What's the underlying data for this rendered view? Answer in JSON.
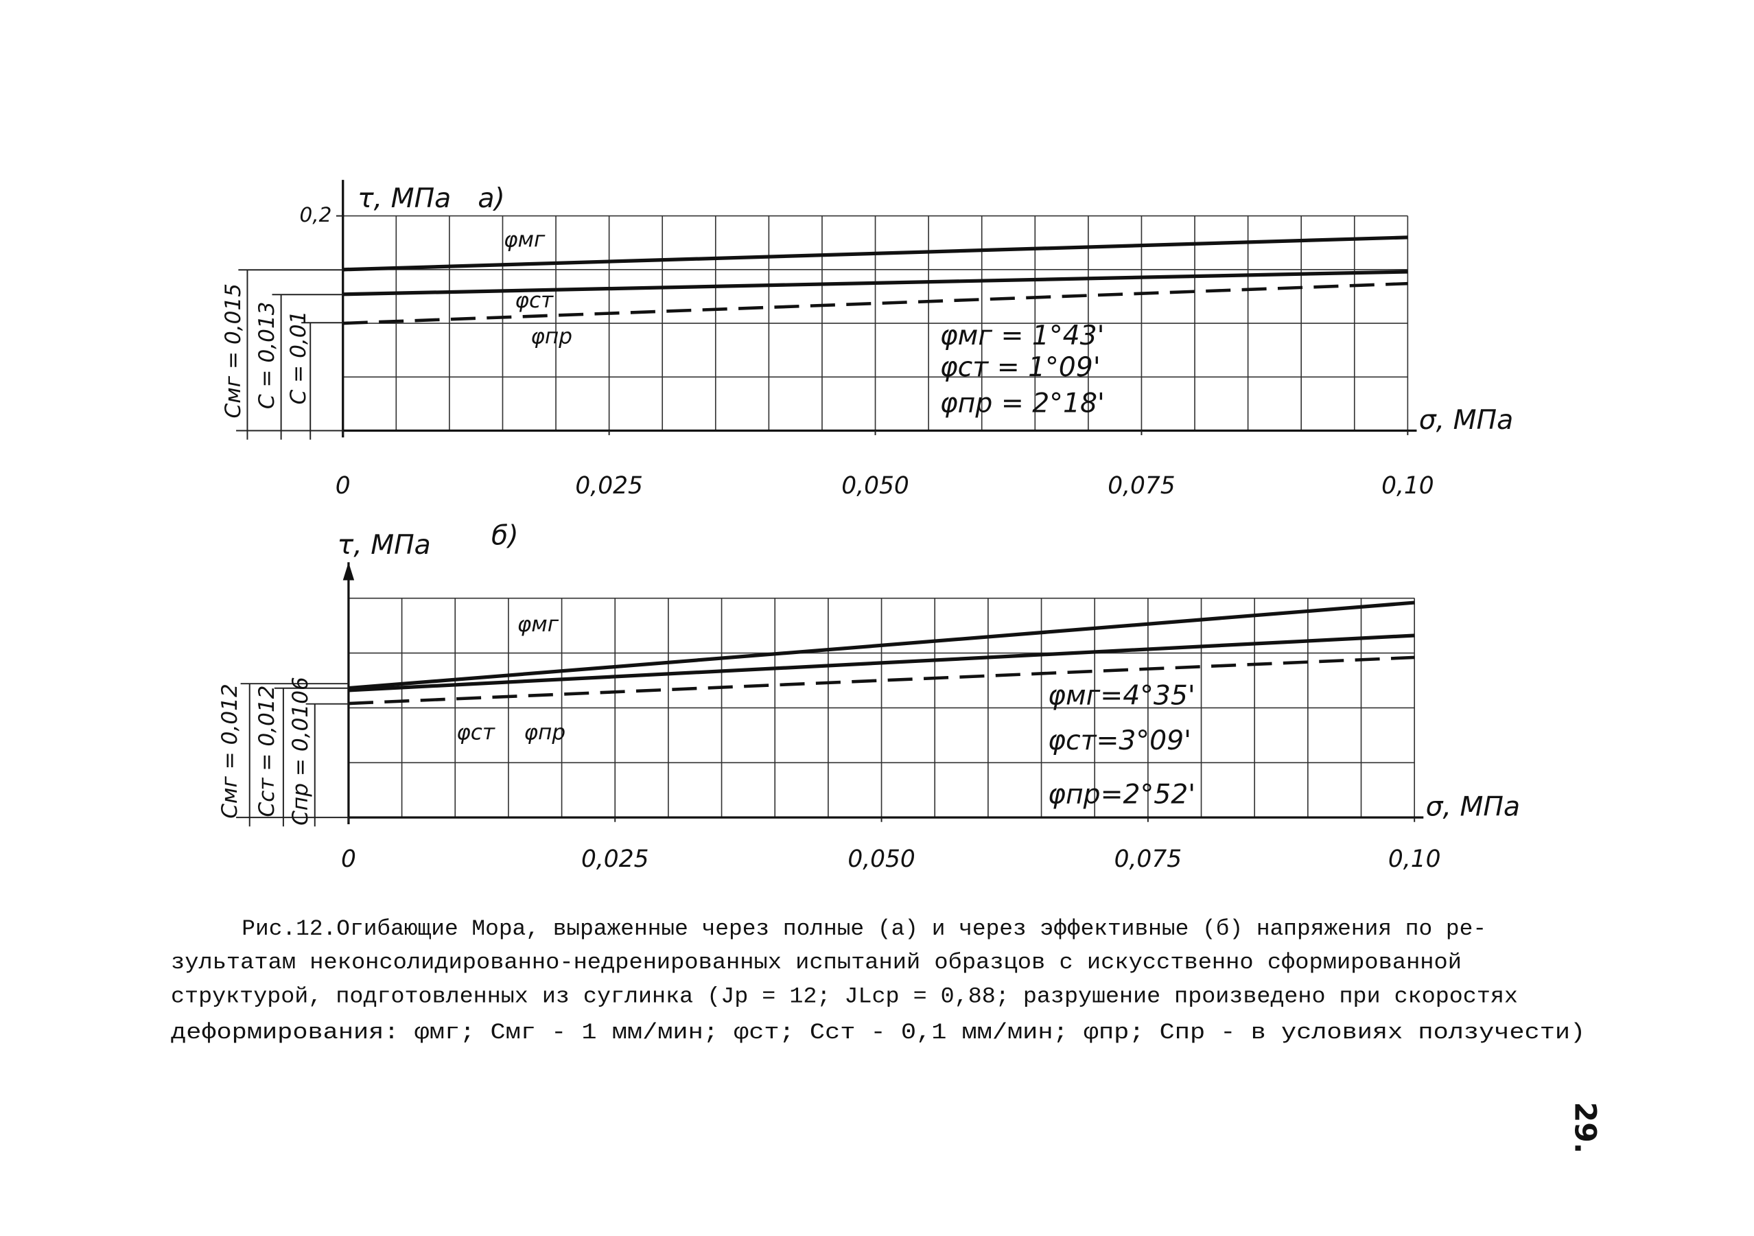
{
  "chart_data": [
    {
      "type": "line",
      "label": "а)",
      "ylabel": "τ, МПа",
      "xlabel": "σ, МПа",
      "x": [
        0,
        0.1
      ],
      "xlim": [
        0,
        0.1
      ],
      "ylim": [
        0,
        0.2
      ],
      "xticks": [
        0,
        {
          "value": 0.025,
          "label": "0,025"
        },
        {
          "value": 0.05,
          "label": "0,050"
        },
        {
          "value": 0.075,
          "label": "0,075"
        },
        {
          "value": 0.1,
          "label": "0,10"
        }
      ],
      "yticks": [
        {
          "value": 0.2,
          "label": "0,2"
        }
      ],
      "series": [
        {
          "name": "φмг",
          "color": "#111111",
          "style": "solid",
          "values": [
            0.15,
            0.18
          ]
        },
        {
          "name": "φст",
          "color": "#111111",
          "style": "solid",
          "values": [
            0.127,
            0.148
          ]
        },
        {
          "name": "φпр",
          "color": "#111111",
          "style": "dashed",
          "values": [
            0.1,
            0.137
          ]
        }
      ],
      "annotations": [
        "φмг = 1°43'",
        "φст = 1°09'",
        "φпр = 2°18'"
      ],
      "cohesion": [
        "Cмг = 0,015",
        "C = 0,013",
        "C = 0,01"
      ]
    },
    {
      "type": "line",
      "label": "б)",
      "ylabel": "τ, МПа",
      "xlabel": "σ, МПа",
      "x": [
        0,
        0.1
      ],
      "xlim": [
        0,
        0.1
      ],
      "ylim": [
        0,
        0.2
      ],
      "xticks": [
        0,
        {
          "value": 0.025,
          "label": "0,025"
        },
        {
          "value": 0.05,
          "label": "0,050"
        },
        {
          "value": 0.075,
          "label": "0,075"
        },
        {
          "value": 0.1,
          "label": "0,10"
        }
      ],
      "yticks": [],
      "series": [
        {
          "name": "φмг",
          "color": "#111111",
          "style": "solid",
          "values": [
            0.118,
            0.196
          ]
        },
        {
          "name": "φст",
          "color": "#111111",
          "style": "solid",
          "values": [
            0.116,
            0.166
          ]
        },
        {
          "name": "φпр",
          "color": "#111111",
          "style": "dashed",
          "values": [
            0.104,
            0.146
          ]
        }
      ],
      "annotations": [
        "φмг=4°35'",
        "φст=3°09'",
        "φпр=2°52'"
      ],
      "cohesion": [
        "Cмг = 0,012",
        "Cст = 0,012",
        "Cпр = 0,0106"
      ]
    }
  ],
  "caption": [
    "Рис.12.Огибающие Мора, выраженные через полные (а) и через эффективные (б) напряжения по ре-",
    "зультатам неконсолидированно-недренированных испытаний образцов с искусственно сформированной",
    "структурой, подготовленных из суглинка (Jp = 12; JLср = 0,88; разрушение произведено при скоростях",
    "деформирования: φмг; Cмг - 1 мм/мин;  φст; Cст - 0,1 мм/мин;  φпр;  Cпр  - в условиях ползучести)"
  ],
  "page_number": "29."
}
